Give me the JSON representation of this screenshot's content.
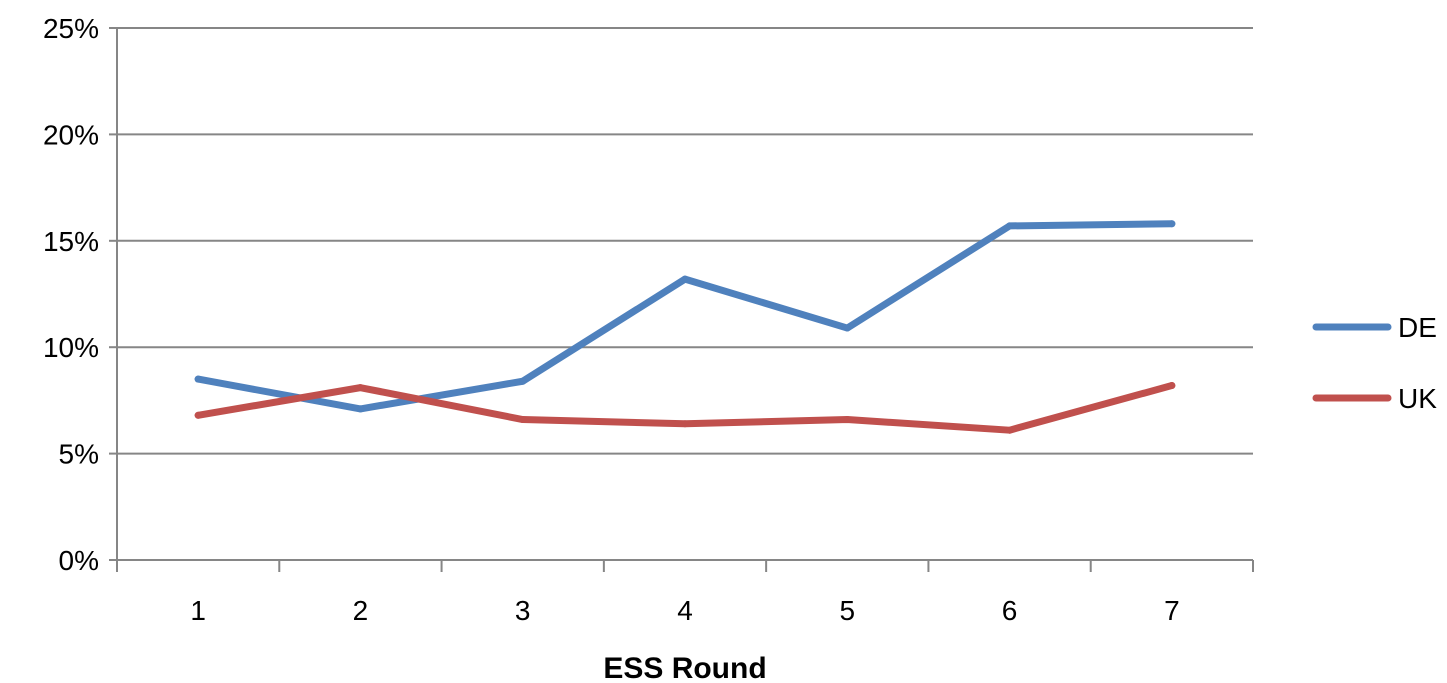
{
  "chart_data": {
    "type": "line",
    "title": "",
    "xlabel": "ESS Round",
    "ylabel": "",
    "categories": [
      "1",
      "2",
      "3",
      "4",
      "5",
      "6",
      "7"
    ],
    "ylim": [
      0,
      0.25
    ],
    "yticks": [
      0,
      0.05,
      0.1,
      0.15,
      0.2,
      0.25
    ],
    "ytick_labels": [
      "0%",
      "5%",
      "10%",
      "15%",
      "20%",
      "25%"
    ],
    "grid": "horizontal",
    "legend_position": "right",
    "series": [
      {
        "name": "DE",
        "color": "#4F81BD",
        "values": [
          0.085,
          0.071,
          0.084,
          0.132,
          0.109,
          0.157,
          0.158
        ]
      },
      {
        "name": "UK",
        "color": "#C0504D",
        "values": [
          0.068,
          0.081,
          0.066,
          0.064,
          0.066,
          0.061,
          0.082
        ]
      }
    ]
  }
}
